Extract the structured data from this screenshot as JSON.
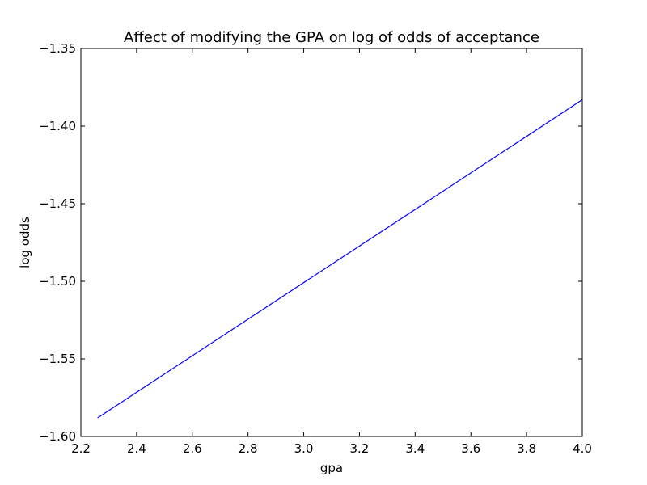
{
  "chart_data": {
    "type": "line",
    "title": "Affect of modifying the GPA on log of odds of acceptance",
    "xlabel": "gpa",
    "ylabel": "log odds",
    "xlim": [
      2.2,
      4.0
    ],
    "ylim": [
      -1.6,
      -1.35
    ],
    "xticks": [
      2.2,
      2.4,
      2.6,
      2.8,
      3.0,
      3.2,
      3.4,
      3.6,
      3.8,
      4.0
    ],
    "xtick_labels": [
      "2.2",
      "2.4",
      "2.6",
      "2.8",
      "3.0",
      "3.2",
      "3.4",
      "3.6",
      "3.8",
      "4.0"
    ],
    "yticks": [
      -1.6,
      -1.55,
      -1.5,
      -1.45,
      -1.4,
      -1.35
    ],
    "ytick_labels": [
      "−1.60",
      "−1.55",
      "−1.50",
      "−1.45",
      "−1.40",
      "−1.35"
    ],
    "grid": false,
    "series": [
      {
        "color": "#0000ff",
        "x": [
          2.26,
          4.0
        ],
        "y": [
          -1.588,
          -1.383
        ]
      }
    ]
  }
}
